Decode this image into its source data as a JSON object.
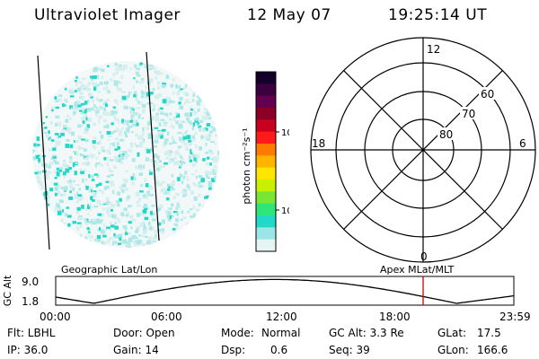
{
  "header": {
    "title": "Ultraviolet Imager",
    "date": "12 May 07",
    "time": "19:25:14 UT"
  },
  "colorbar": {
    "unit_label": "photon cm⁻²s⁻¹",
    "ticks": [
      "100",
      "10"
    ],
    "colors": [
      "#14002a",
      "#3c0040",
      "#640050",
      "#8c0028",
      "#c8001e",
      "#ff1a1a",
      "#ff7a00",
      "#ffb400",
      "#ffe600",
      "#c8f000",
      "#78e632",
      "#2ee678",
      "#22d8c8",
      "#9ae6e6",
      "#e6f4f4"
    ]
  },
  "polar_plot": {
    "labels": {
      "top": "12",
      "bottom": "0",
      "left": "18",
      "right": "6",
      "ring_60": "60",
      "ring_70": "70",
      "ring_80": "80"
    }
  },
  "timeline": {
    "left_label": "Geographic Lat/Lon",
    "right_label": "Apex MLat/MLT",
    "axis_title": "GC Alt",
    "y_top": "9.0",
    "y_bottom": "1.8",
    "x_ticks": [
      "00:00",
      "06:00",
      "12:00",
      "18:00",
      "23:59"
    ],
    "marker_color": "#cc0000"
  },
  "info": {
    "flt": "Flt: LBHL",
    "ip": "IP: 36.0",
    "door": "Door: Open",
    "gain": "Gain: 14",
    "mode_label": "Mode:",
    "mode_value": "Normal",
    "dsp_label": "Dsp:",
    "dsp_value": "0.6",
    "gc_alt": "GC Alt: 3.3 Re",
    "seq": "Seq: 39",
    "glat_label": "GLat:",
    "glat_value": "17.5",
    "glon_label": "GLon:",
    "glon_value": "166.6"
  }
}
